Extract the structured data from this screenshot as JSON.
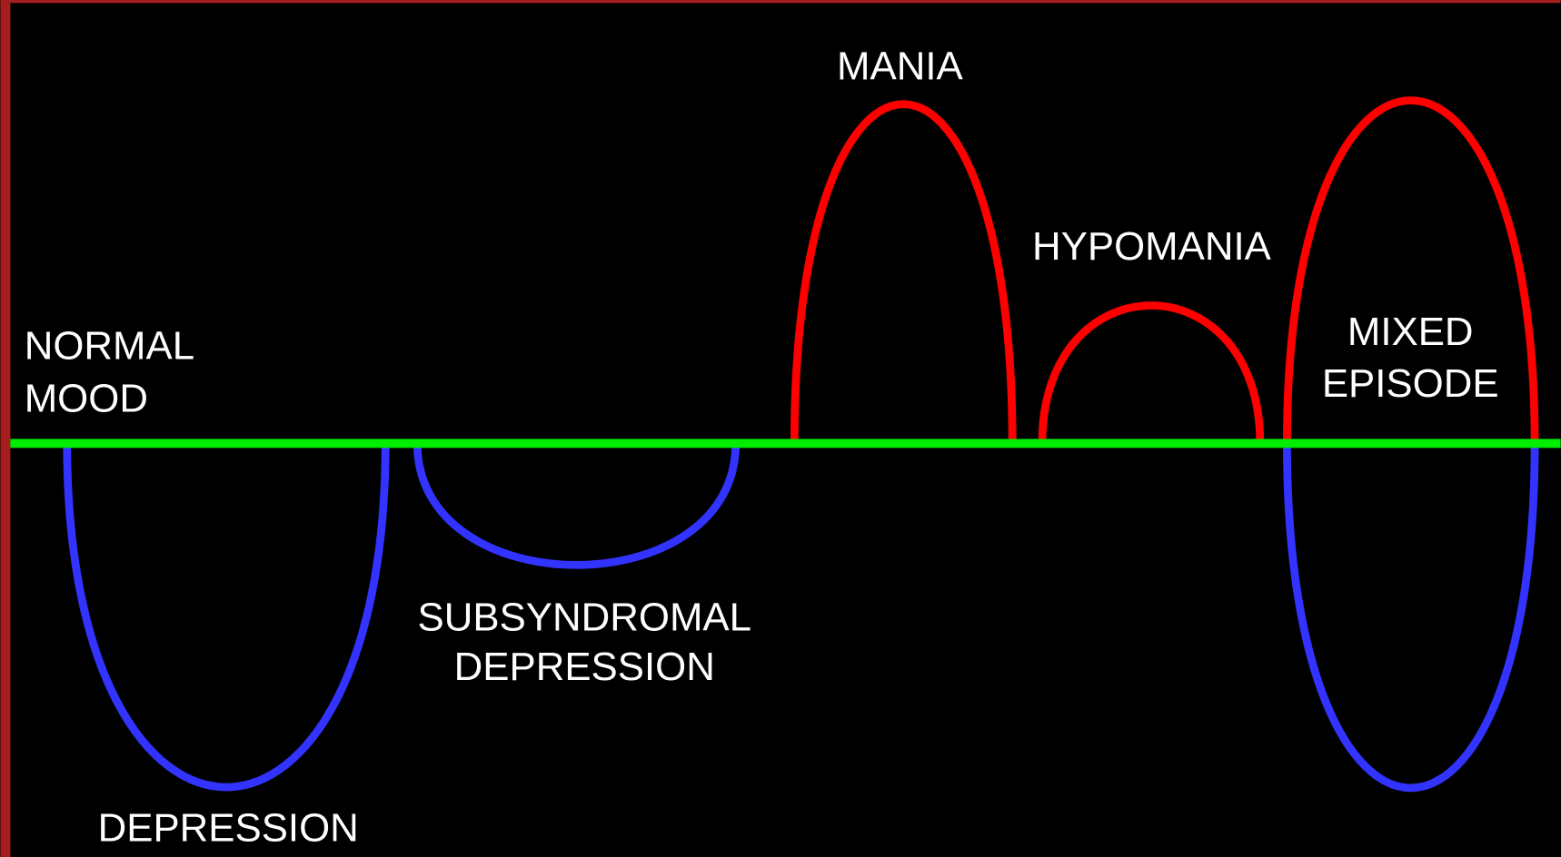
{
  "labels": [
    [
      "NORMAL",
      "MOOD"
    ],
    [
      "MANIA"
    ],
    [
      "HYPOMANIA"
    ],
    [
      "MIXED",
      "EPISODE"
    ],
    [
      "SUBSYNDROMAL",
      "DEPRESSION"
    ],
    [
      "DEPRESSION"
    ]
  ]
}
